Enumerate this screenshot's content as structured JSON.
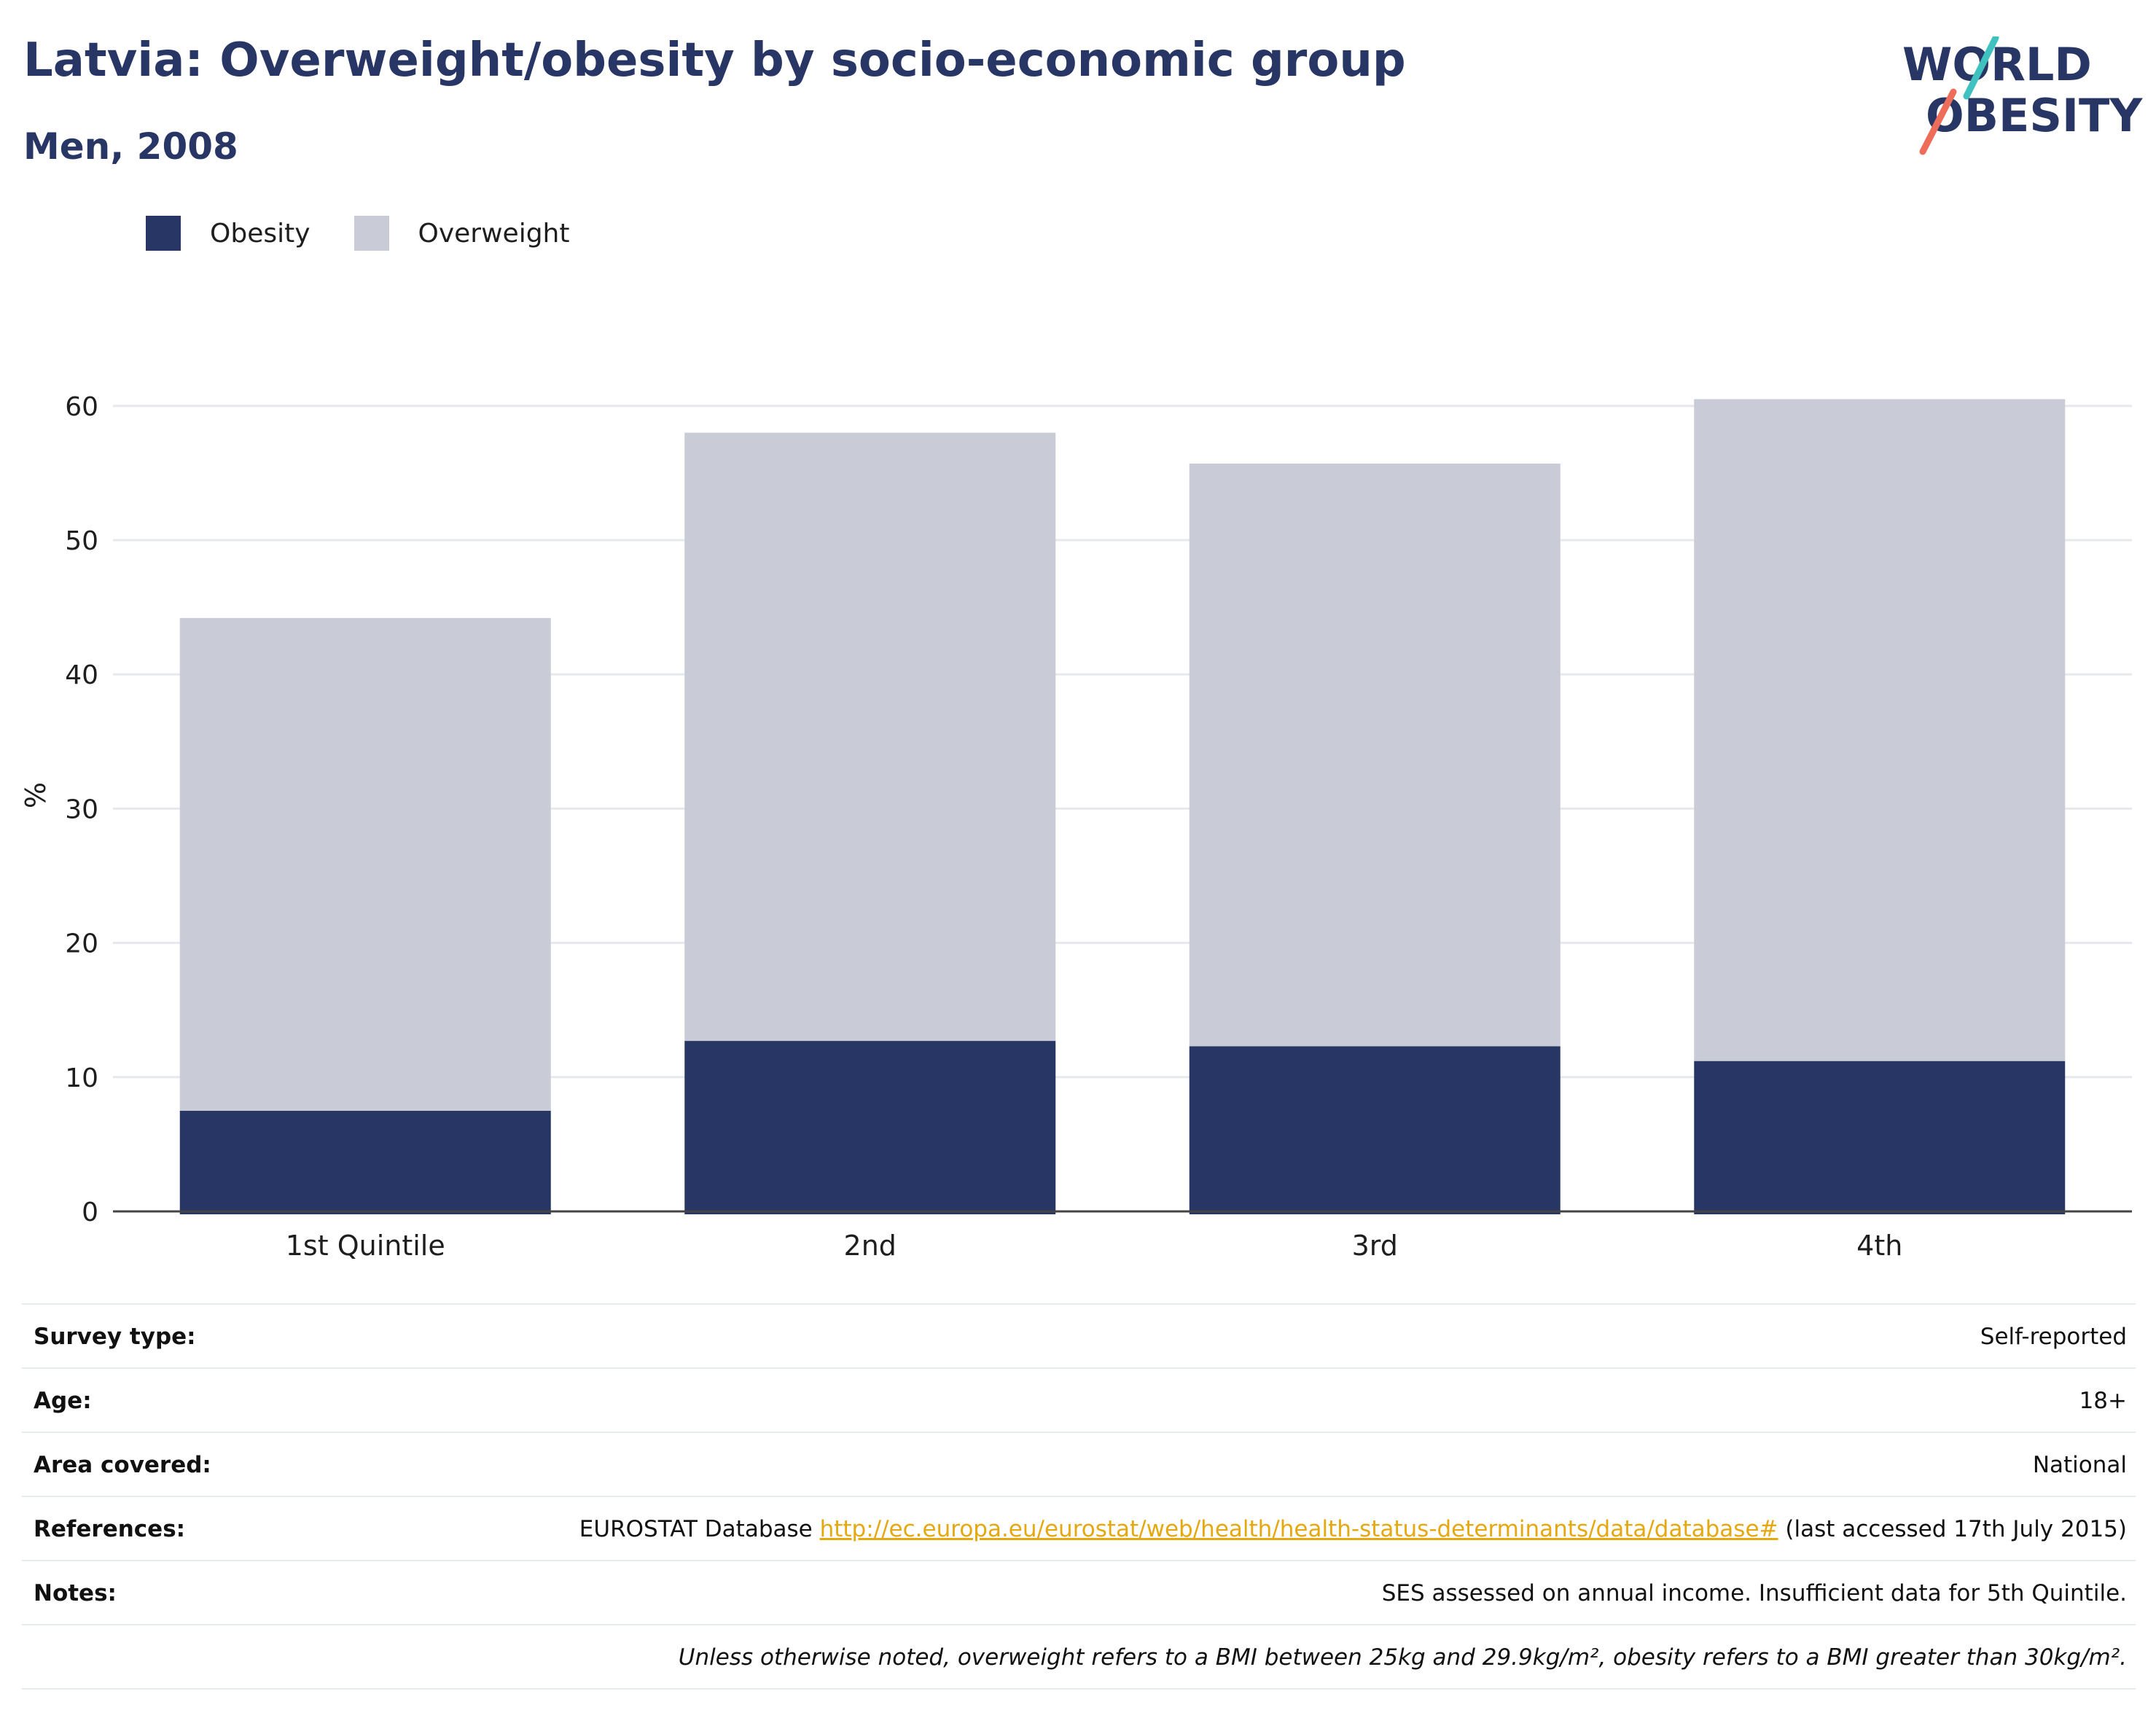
{
  "title": "Latvia: Overweight/obesity by socio-economic group",
  "subtitle": "Men, 2008",
  "logo": {
    "line1": "WORLD",
    "line2": "OBESITY"
  },
  "colors": {
    "obesity": "#283665",
    "overweight": "#c9cbd7",
    "accent_teal": "#3fc1c0",
    "accent_coral": "#ee6d5a",
    "link": "#e5a80f"
  },
  "legend": [
    {
      "label": "Obesity",
      "color": "#283665"
    },
    {
      "label": "Overweight",
      "color": "#c9cbd7"
    }
  ],
  "chart_data": {
    "type": "bar",
    "stacked": true,
    "categories": [
      "1st Quintile",
      "2nd",
      "3rd",
      "4th"
    ],
    "series": [
      {
        "name": "Obesity",
        "values": [
          7.5,
          12.7,
          12.3,
          11.2
        ]
      },
      {
        "name": "Overweight",
        "values": [
          36.7,
          45.3,
          43.4,
          49.3
        ]
      }
    ],
    "ylabel": "%",
    "ylim": [
      0,
      62
    ],
    "yticks": [
      0,
      10,
      20,
      30,
      40,
      50,
      60
    ],
    "grid": true,
    "legend_position": "top-left"
  },
  "meta": {
    "survey_type": {
      "label": "Survey type:",
      "value": "Self-reported"
    },
    "age": {
      "label": "Age:",
      "value": "18+"
    },
    "area": {
      "label": "Area covered:",
      "value": "National"
    },
    "references": {
      "label": "References:",
      "prefix": "EUROSTAT Database",
      "link": "http://ec.europa.eu/eurostat/web/health/health-status-determinants/data/database#",
      "suffix": "(last accessed 17th July 2015)"
    },
    "notes": {
      "label": "Notes:",
      "value": "SES assessed on annual income. Insufficient data for 5th Quintile."
    },
    "footnote": "Unless otherwise noted, overweight refers to a BMI between 25kg and 29.9kg/m², obesity refers to a BMI greater than 30kg/m²."
  }
}
